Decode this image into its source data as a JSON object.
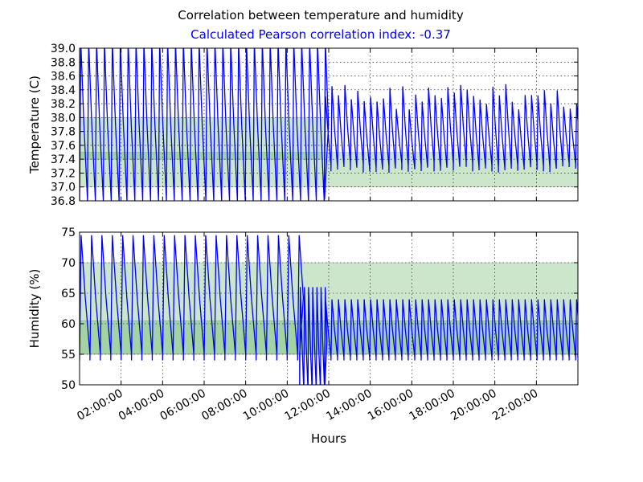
{
  "chart_data": {
    "type": "line",
    "title": "Correlation between temperature and humidity",
    "subtitle": "Calculated Pearson correlation index: -0.37",
    "xlabel": "Hours",
    "x_tick_labels": [
      "02:00:00",
      "04:00:00",
      "06:00:00",
      "08:00:00",
      "10:00:00",
      "12:00:00",
      "14:00:00",
      "16:00:00",
      "18:00:00",
      "20:00:00",
      "22:00:00"
    ],
    "x_tick_hours": [
      2,
      4,
      6,
      8,
      10,
      12,
      14,
      16,
      18,
      20,
      22
    ],
    "xlim_hours": [
      0,
      24
    ],
    "colors": {
      "series": "#0000ff",
      "subtitle": "#0000ff",
      "band": "#cde6cd",
      "band_overlap": "#a5d5a5"
    },
    "panels": [
      {
        "ylabel": "Temperature (C)",
        "ylim": [
          36.8,
          39.0
        ],
        "yticks": [
          "36.8",
          "37.0",
          "37.2",
          "37.4",
          "37.6",
          "37.8",
          "38.0",
          "38.2",
          "38.4",
          "38.6",
          "38.8",
          "39.0"
        ],
        "bands": [
          {
            "y_range": [
              37.0,
              38.0
            ],
            "x_range": [
              0,
              11.8
            ]
          },
          {
            "y_range": [
              37.4,
              37.5
            ],
            "x_range": [
              0,
              11.8
            ]
          },
          {
            "y_range": [
              37.0,
              37.5
            ],
            "x_range": [
              11.8,
              24
            ]
          }
        ],
        "series": {
          "segments": [
            {
              "x_range": [
                0,
                11.8
              ],
              "period": 0.38,
              "low": 36.7,
              "high": 39.1,
              "clip": true
            },
            {
              "x_range": [
                11.8,
                24
              ],
              "period": 0.31,
              "low": 37.2,
              "high": 38.5,
              "jitter": 0.4
            }
          ]
        }
      },
      {
        "ylabel": "Humidity (%)",
        "ylim": [
          50,
          75
        ],
        "yticks": [
          "50",
          "55",
          "60",
          "65",
          "70",
          "75"
        ],
        "bands": [
          {
            "y_range": [
              55,
              70
            ],
            "x_range": [
              0,
              24
            ]
          },
          {
            "y_range": [
              55,
              60.5
            ],
            "x_range": [
              0,
              24
            ]
          }
        ],
        "series": {
          "segments": [
            {
              "x_range": [
                0,
                10.6
              ],
              "period": 0.5,
              "low": 54,
              "high": 74.5
            },
            {
              "x_range": [
                10.6,
                11.8
              ],
              "period": 0.2,
              "low": 48,
              "high": 66
            },
            {
              "x_range": [
                11.8,
                24
              ],
              "period": 0.31,
              "low": 54,
              "high": 64
            }
          ]
        }
      }
    ]
  }
}
